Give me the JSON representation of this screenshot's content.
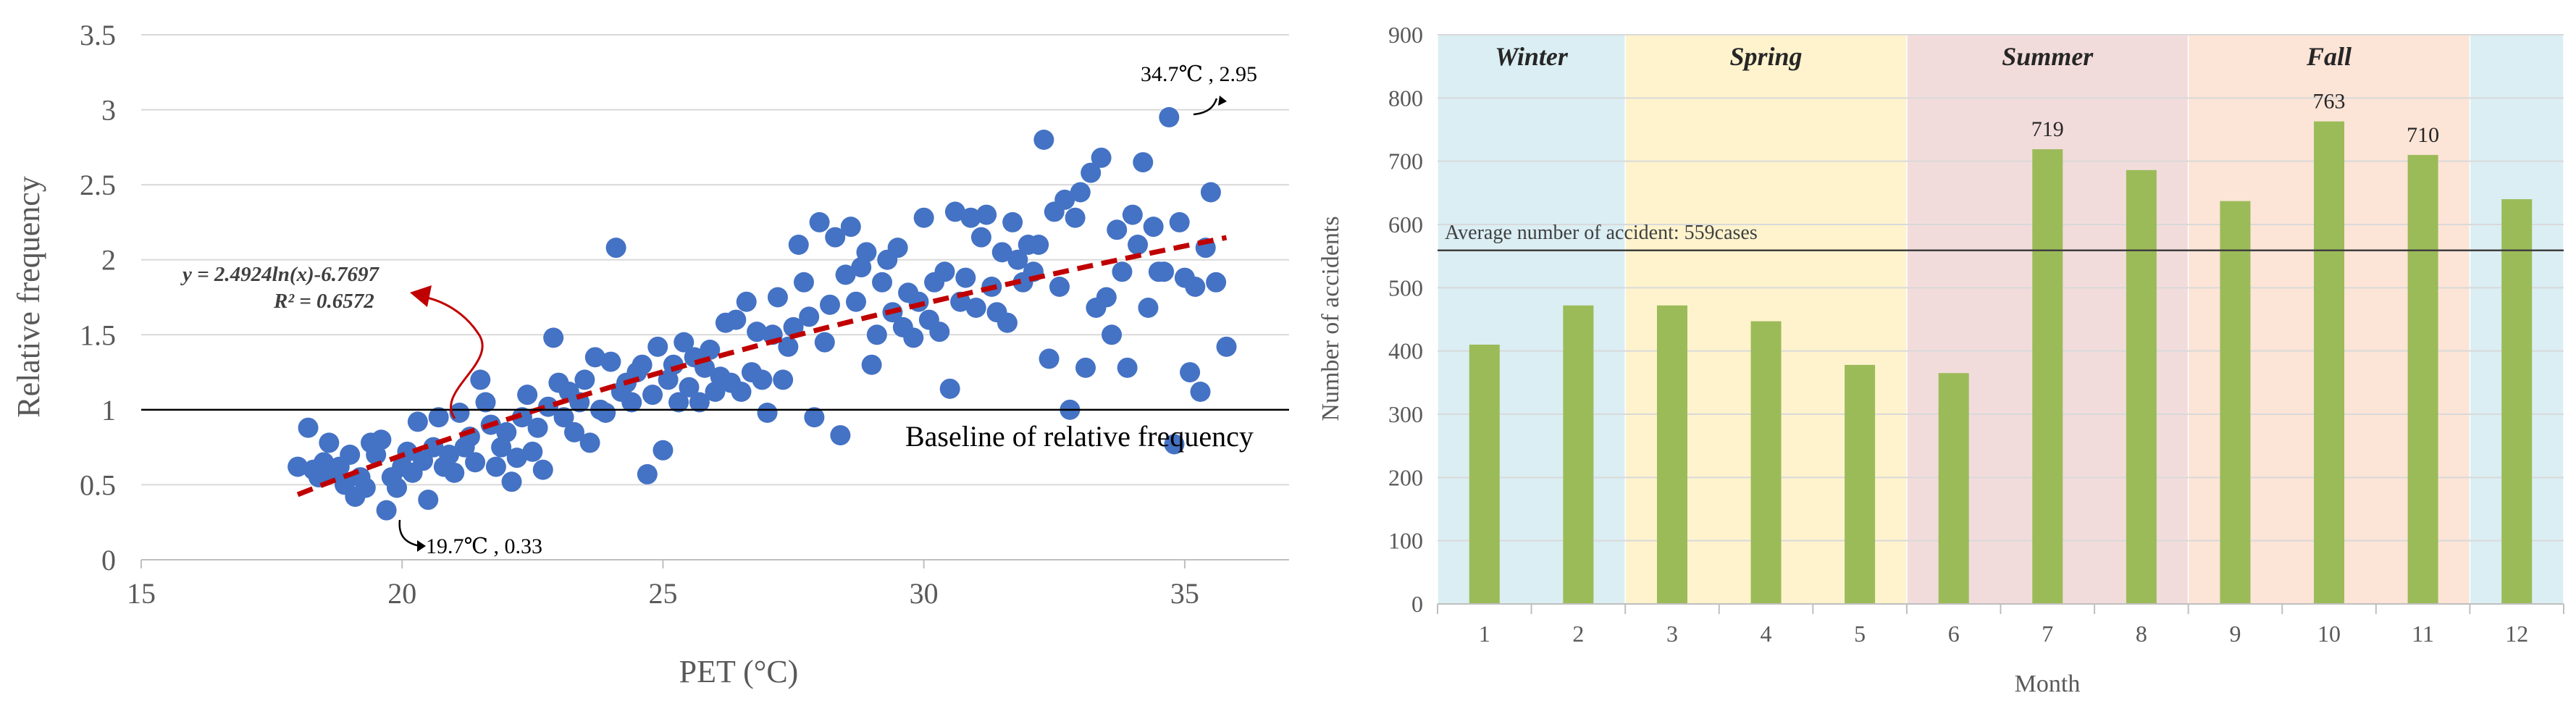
{
  "chart_data": [
    {
      "type": "scatter",
      "xlabel": "PET (°C)",
      "ylabel": "Relative frequency",
      "xlim": [
        15,
        37
      ],
      "ylim": [
        0,
        3.5
      ],
      "xticks": [
        "15",
        "20",
        "25",
        "30",
        "35"
      ],
      "yticks": [
        "0",
        "0.5",
        "1",
        "1.5",
        "2",
        "2.5",
        "3",
        "3.5"
      ],
      "colors": {
        "points": "#4472C4",
        "trend": "#C00000",
        "baseline": "#000000",
        "arrow": "#C00000"
      },
      "trendline": {
        "equation": "y = 2.4924ln(x)-6.7697",
        "r2": "R² = 0.6572",
        "a": 2.4924,
        "b": -6.7697,
        "x_range": [
          18,
          35.8
        ]
      },
      "baseline": {
        "y": 1,
        "label": "Baseline of relative frequency"
      },
      "annotations": {
        "max": {
          "text": "34.7℃ , 2.95",
          "x": 34.7,
          "y": 2.95
        },
        "min": {
          "text": "19.7℃ , 0.33",
          "x": 19.7,
          "y": 0.33
        }
      },
      "points": [
        [
          18.0,
          0.62
        ],
        [
          18.2,
          0.88
        ],
        [
          18.3,
          0.6
        ],
        [
          18.4,
          0.55
        ],
        [
          18.5,
          0.65
        ],
        [
          18.6,
          0.78
        ],
        [
          18.7,
          0.58
        ],
        [
          18.8,
          0.62
        ],
        [
          18.9,
          0.5
        ],
        [
          19.0,
          0.7
        ],
        [
          19.1,
          0.42
        ],
        [
          19.2,
          0.55
        ],
        [
          19.3,
          0.48
        ],
        [
          19.4,
          0.78
        ],
        [
          19.5,
          0.7
        ],
        [
          19.6,
          0.8
        ],
        [
          19.7,
          0.33
        ],
        [
          19.8,
          0.55
        ],
        [
          19.9,
          0.48
        ],
        [
          20.0,
          0.62
        ],
        [
          20.1,
          0.72
        ],
        [
          20.2,
          0.58
        ],
        [
          20.3,
          0.92
        ],
        [
          20.4,
          0.66
        ],
        [
          20.5,
          0.4
        ],
        [
          20.6,
          0.75
        ],
        [
          20.7,
          0.95
        ],
        [
          20.8,
          0.62
        ],
        [
          20.9,
          0.7
        ],
        [
          21.0,
          0.58
        ],
        [
          21.1,
          0.98
        ],
        [
          21.2,
          0.75
        ],
        [
          21.3,
          0.82
        ],
        [
          21.4,
          0.65
        ],
        [
          21.5,
          1.2
        ],
        [
          21.6,
          1.05
        ],
        [
          21.7,
          0.9
        ],
        [
          21.8,
          0.62
        ],
        [
          21.9,
          0.75
        ],
        [
          22.0,
          0.85
        ],
        [
          22.1,
          0.52
        ],
        [
          22.2,
          0.68
        ],
        [
          22.3,
          0.95
        ],
        [
          22.4,
          1.1
        ],
        [
          22.5,
          0.72
        ],
        [
          22.6,
          0.88
        ],
        [
          22.7,
          0.6
        ],
        [
          22.8,
          1.02
        ],
        [
          22.9,
          1.48
        ],
        [
          23.0,
          1.18
        ],
        [
          23.1,
          0.95
        ],
        [
          23.2,
          1.12
        ],
        [
          23.3,
          0.85
        ],
        [
          23.4,
          1.05
        ],
        [
          23.5,
          1.2
        ],
        [
          23.6,
          0.78
        ],
        [
          23.7,
          1.35
        ],
        [
          23.8,
          1.0
        ],
        [
          23.9,
          0.98
        ],
        [
          24.0,
          1.32
        ],
        [
          24.1,
          2.08
        ],
        [
          24.2,
          1.12
        ],
        [
          24.3,
          1.18
        ],
        [
          24.4,
          1.05
        ],
        [
          24.5,
          1.25
        ],
        [
          24.6,
          1.3
        ],
        [
          24.7,
          0.57
        ],
        [
          24.8,
          1.1
        ],
        [
          24.9,
          1.42
        ],
        [
          25.0,
          0.73
        ],
        [
          25.1,
          1.2
        ],
        [
          25.2,
          1.3
        ],
        [
          25.3,
          1.05
        ],
        [
          25.4,
          1.45
        ],
        [
          25.5,
          1.15
        ],
        [
          25.6,
          1.35
        ],
        [
          25.7,
          1.05
        ],
        [
          25.8,
          1.28
        ],
        [
          25.9,
          1.4
        ],
        [
          26.0,
          1.12
        ],
        [
          26.1,
          1.22
        ],
        [
          26.2,
          1.58
        ],
        [
          26.3,
          1.18
        ],
        [
          26.4,
          1.6
        ],
        [
          26.5,
          1.12
        ],
        [
          26.6,
          1.72
        ],
        [
          26.7,
          1.25
        ],
        [
          26.8,
          1.52
        ],
        [
          26.9,
          1.2
        ],
        [
          27.0,
          0.98
        ],
        [
          27.1,
          1.5
        ],
        [
          27.2,
          1.75
        ],
        [
          27.3,
          1.2
        ],
        [
          27.4,
          1.42
        ],
        [
          27.5,
          1.55
        ],
        [
          27.6,
          2.1
        ],
        [
          27.7,
          1.85
        ],
        [
          27.8,
          1.62
        ],
        [
          27.9,
          0.95
        ],
        [
          28.0,
          2.25
        ],
        [
          28.1,
          1.45
        ],
        [
          28.2,
          1.7
        ],
        [
          28.3,
          2.15
        ],
        [
          28.4,
          0.83
        ],
        [
          28.5,
          1.9
        ],
        [
          28.6,
          2.22
        ],
        [
          28.7,
          1.72
        ],
        [
          28.8,
          1.95
        ],
        [
          28.9,
          2.05
        ],
        [
          29.0,
          1.3
        ],
        [
          29.1,
          1.5
        ],
        [
          29.2,
          1.85
        ],
        [
          29.3,
          2.0
        ],
        [
          29.4,
          1.65
        ],
        [
          29.5,
          2.08
        ],
        [
          29.6,
          1.55
        ],
        [
          29.7,
          1.78
        ],
        [
          29.8,
          1.48
        ],
        [
          29.9,
          1.72
        ],
        [
          30.0,
          2.28
        ],
        [
          30.1,
          1.6
        ],
        [
          30.2,
          1.85
        ],
        [
          30.3,
          1.52
        ],
        [
          30.4,
          1.92
        ],
        [
          30.5,
          1.14
        ],
        [
          30.6,
          2.32
        ],
        [
          30.7,
          1.72
        ],
        [
          30.8,
          1.88
        ],
        [
          30.9,
          2.28
        ],
        [
          31.0,
          1.68
        ],
        [
          31.1,
          2.15
        ],
        [
          31.2,
          2.3
        ],
        [
          31.3,
          1.82
        ],
        [
          31.4,
          1.65
        ],
        [
          31.5,
          2.05
        ],
        [
          31.6,
          1.58
        ],
        [
          31.7,
          2.25
        ],
        [
          31.8,
          2.0
        ],
        [
          31.9,
          1.85
        ],
        [
          32.0,
          2.1
        ],
        [
          32.1,
          1.92
        ],
        [
          32.2,
          2.1
        ],
        [
          32.3,
          2.8
        ],
        [
          32.4,
          1.34
        ],
        [
          32.5,
          2.32
        ],
        [
          32.6,
          1.82
        ],
        [
          32.7,
          2.4
        ],
        [
          32.8,
          1.0
        ],
        [
          32.9,
          2.28
        ],
        [
          33.0,
          2.45
        ],
        [
          33.1,
          1.28
        ],
        [
          33.2,
          2.58
        ],
        [
          33.3,
          1.68
        ],
        [
          33.4,
          2.68
        ],
        [
          33.5,
          1.75
        ],
        [
          33.6,
          1.5
        ],
        [
          33.7,
          2.2
        ],
        [
          33.8,
          1.92
        ],
        [
          33.9,
          1.28
        ],
        [
          34.0,
          2.3
        ],
        [
          34.1,
          2.1
        ],
        [
          34.2,
          2.65
        ],
        [
          34.3,
          1.68
        ],
        [
          34.4,
          2.22
        ],
        [
          34.5,
          1.92
        ],
        [
          34.6,
          1.92
        ],
        [
          34.7,
          2.95
        ],
        [
          34.8,
          0.77
        ],
        [
          34.9,
          2.25
        ],
        [
          35.0,
          1.88
        ],
        [
          35.1,
          1.25
        ],
        [
          35.2,
          1.82
        ],
        [
          35.3,
          1.12
        ],
        [
          35.4,
          2.08
        ],
        [
          35.5,
          2.45
        ],
        [
          35.6,
          1.85
        ],
        [
          35.8,
          1.42
        ]
      ]
    },
    {
      "type": "bar",
      "xlabel": "Month",
      "ylabel": "Number of accidents",
      "ylim": [
        0,
        900
      ],
      "yticks": [
        "0",
        "100",
        "200",
        "300",
        "400",
        "500",
        "600",
        "700",
        "800",
        "900"
      ],
      "categories": [
        "1",
        "2",
        "3",
        "4",
        "5",
        "6",
        "7",
        "8",
        "9",
        "10",
        "11",
        "12"
      ],
      "values": [
        410,
        472,
        472,
        447,
        378,
        365,
        719,
        686,
        637,
        763,
        710,
        640
      ],
      "bar_labels": [
        "",
        "",
        "",
        "",
        "",
        "",
        "719",
        "",
        "",
        "763",
        "710",
        ""
      ],
      "colors": {
        "bars": "#9BBB59",
        "winter": "#DAEEF3",
        "spring": "#FEF3CD",
        "summer": "#F2DCDB",
        "fall": "#FCE4D6",
        "grid": "#D9D9D9",
        "average": "#404040"
      },
      "average": {
        "value": 559,
        "label": "Average number of accident: 559cases"
      },
      "seasons": [
        {
          "name": "Winter",
          "start": 1,
          "end": 2,
          "color_key": "winter"
        },
        {
          "name": "Spring",
          "start": 3,
          "end": 5,
          "color_key": "spring"
        },
        {
          "name": "Summer",
          "start": 6,
          "end": 8,
          "color_key": "summer"
        },
        {
          "name": "Fall",
          "start": 9,
          "end": 11,
          "color_key": "fall"
        },
        {
          "name": "",
          "start": 12,
          "end": 12,
          "color_key": "winter"
        }
      ]
    }
  ]
}
